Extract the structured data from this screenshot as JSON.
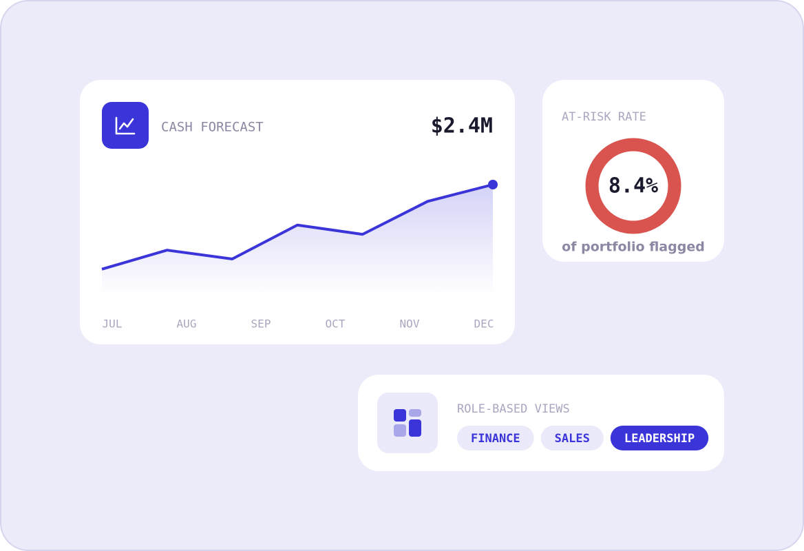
{
  "chart_data": {
    "type": "line",
    "title": "CASH FORECAST",
    "headline": "$2.4M",
    "color": "#3b35d9",
    "values": [
      0.58,
      0.99,
      0.8,
      1.53,
      1.33,
      2.04,
      2.4
    ],
    "ylim": [
      0,
      2.4
    ],
    "x_labels": [
      "JUL",
      "AUG",
      "SEP",
      "OCT",
      "NOV",
      "DEC"
    ]
  },
  "risk_card": {
    "title": "AT-RISK RATE",
    "rate": "8.4%",
    "caption": "of portfolio flagged",
    "color": "#d9534f"
  },
  "views_card": {
    "title": "ROLE-BASED VIEWS",
    "options": [
      "FINANCE",
      "SALES",
      "LEADERSHIP"
    ],
    "selected": 2
  }
}
